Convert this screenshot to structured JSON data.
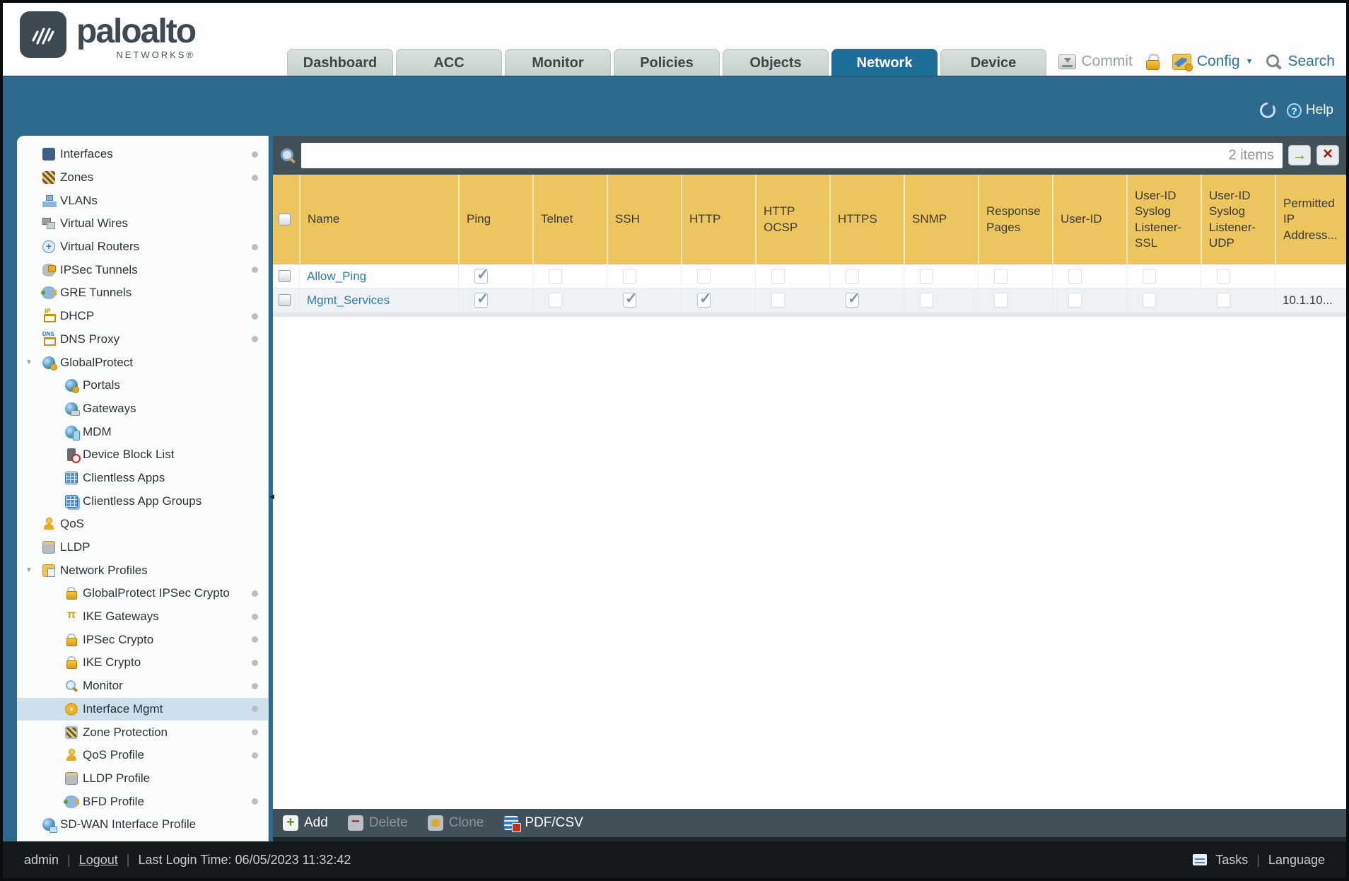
{
  "brand": {
    "name": "paloalto",
    "sub": "NETWORKS®"
  },
  "nav": {
    "tabs": [
      {
        "label": "Dashboard",
        "active": false
      },
      {
        "label": "ACC",
        "active": false
      },
      {
        "label": "Monitor",
        "active": false
      },
      {
        "label": "Policies",
        "active": false
      },
      {
        "label": "Objects",
        "active": false
      },
      {
        "label": "Network",
        "active": true
      },
      {
        "label": "Device",
        "active": false
      }
    ]
  },
  "top_actions": {
    "commit": "Commit",
    "config": "Config",
    "search": "Search"
  },
  "blue_band": {
    "help": "Help"
  },
  "sidebar": {
    "items": [
      {
        "label": "Interfaces",
        "icon": "interfaces-icon",
        "level": 0,
        "dot": true
      },
      {
        "label": "Zones",
        "icon": "zones-icon",
        "level": 0,
        "dot": true
      },
      {
        "label": "VLANs",
        "icon": "vlans-icon",
        "level": 0,
        "dot": false
      },
      {
        "label": "Virtual Wires",
        "icon": "virtual-wires-icon",
        "level": 0,
        "dot": false
      },
      {
        "label": "Virtual Routers",
        "icon": "virtual-routers-icon",
        "level": 0,
        "dot": true
      },
      {
        "label": "IPSec Tunnels",
        "icon": "ipsec-tunnels-icon",
        "level": 0,
        "dot": true
      },
      {
        "label": "GRE Tunnels",
        "icon": "gre-tunnels-icon",
        "level": 0,
        "dot": false
      },
      {
        "label": "DHCP",
        "icon": "dhcp-icon",
        "level": 0,
        "dot": true
      },
      {
        "label": "DNS Proxy",
        "icon": "dns-proxy-icon",
        "level": 0,
        "dot": true
      },
      {
        "label": "GlobalProtect",
        "icon": "globalprotect-icon",
        "level": 0,
        "expanded": true,
        "dot": false
      },
      {
        "label": "Portals",
        "icon": "portals-icon",
        "level": 1,
        "dot": false
      },
      {
        "label": "Gateways",
        "icon": "gateways-icon",
        "level": 1,
        "dot": false
      },
      {
        "label": "MDM",
        "icon": "mdm-icon",
        "level": 1,
        "dot": false
      },
      {
        "label": "Device Block List",
        "icon": "device-block-list-icon",
        "level": 1,
        "dot": false
      },
      {
        "label": "Clientless Apps",
        "icon": "clientless-apps-icon",
        "level": 1,
        "dot": false
      },
      {
        "label": "Clientless App Groups",
        "icon": "clientless-app-groups-icon",
        "level": 1,
        "dot": false
      },
      {
        "label": "QoS",
        "icon": "qos-icon",
        "level": 0,
        "dot": false
      },
      {
        "label": "LLDP",
        "icon": "lldp-icon",
        "level": 0,
        "dot": false
      },
      {
        "label": "Network Profiles",
        "icon": "network-profiles-icon",
        "level": 0,
        "expanded": true,
        "dot": false
      },
      {
        "label": "GlobalProtect IPSec Crypto",
        "icon": "lock-icon",
        "level": 1,
        "dot": true
      },
      {
        "label": "IKE Gateways",
        "icon": "ike-gateways-icon",
        "level": 1,
        "dot": true
      },
      {
        "label": "IPSec Crypto",
        "icon": "lock-icon",
        "level": 1,
        "dot": true
      },
      {
        "label": "IKE Crypto",
        "icon": "lock-icon",
        "level": 1,
        "dot": true
      },
      {
        "label": "Monitor",
        "icon": "monitor-icon",
        "level": 1,
        "dot": true
      },
      {
        "label": "Interface Mgmt",
        "icon": "interface-mgmt-icon",
        "level": 1,
        "selected": true,
        "dot": true
      },
      {
        "label": "Zone Protection",
        "icon": "zone-protection-icon",
        "level": 1,
        "dot": true
      },
      {
        "label": "QoS Profile",
        "icon": "qos-profile-icon",
        "level": 1,
        "dot": true
      },
      {
        "label": "LLDP Profile",
        "icon": "lldp-profile-icon",
        "level": 1,
        "dot": false
      },
      {
        "label": "BFD Profile",
        "icon": "bfd-profile-icon",
        "level": 1,
        "dot": true
      },
      {
        "label": "SD-WAN Interface Profile",
        "icon": "sd-wan-icon",
        "level": 0,
        "dot": false
      }
    ]
  },
  "content": {
    "search": {
      "value": "",
      "count": "2 items"
    },
    "table": {
      "columns": [
        {
          "key": "name",
          "label": "Name"
        },
        {
          "key": "ping",
          "label": "Ping"
        },
        {
          "key": "telnet",
          "label": "Telnet"
        },
        {
          "key": "ssh",
          "label": "SSH"
        },
        {
          "key": "http",
          "label": "HTTP"
        },
        {
          "key": "http_ocsp",
          "label": "HTTP OCSP"
        },
        {
          "key": "https",
          "label": "HTTPS"
        },
        {
          "key": "snmp",
          "label": "SNMP"
        },
        {
          "key": "response_pages",
          "label": "Response Pages"
        },
        {
          "key": "user_id",
          "label": "User-ID"
        },
        {
          "key": "uid_syslog_ssl",
          "label": "User-ID Syslog Listener-SSL"
        },
        {
          "key": "uid_syslog_udp",
          "label": "User-ID Syslog Listener-UDP"
        },
        {
          "key": "permitted_ip",
          "label": "Permitted IP Address..."
        }
      ],
      "permission_keys": [
        "ping",
        "telnet",
        "ssh",
        "http",
        "http_ocsp",
        "https",
        "snmp",
        "response_pages",
        "user_id",
        "uid_syslog_ssl",
        "uid_syslog_udp"
      ],
      "rows": [
        {
          "name": "Allow_Ping",
          "checks": {
            "ping": true
          },
          "permitted_ip": ""
        },
        {
          "name": "Mgmt_Services",
          "checks": {
            "ping": true,
            "ssh": true,
            "http": true,
            "https": true
          },
          "permitted_ip": "10.1.10..."
        }
      ]
    },
    "toolbar": {
      "buttons": [
        {
          "label": "Add",
          "icon": "add-icon",
          "enabled": true
        },
        {
          "label": "Delete",
          "icon": "delete-icon",
          "enabled": false
        },
        {
          "label": "Clone",
          "icon": "clone-icon",
          "enabled": false
        },
        {
          "label": "PDF/CSV",
          "icon": "pdf-csv-icon",
          "enabled": true
        }
      ]
    }
  },
  "status_bar": {
    "user": "admin",
    "logout": "Logout",
    "last_login": "Last Login Time: 06/05/2023 11:32:42",
    "tasks": "Tasks",
    "language": "Language"
  }
}
